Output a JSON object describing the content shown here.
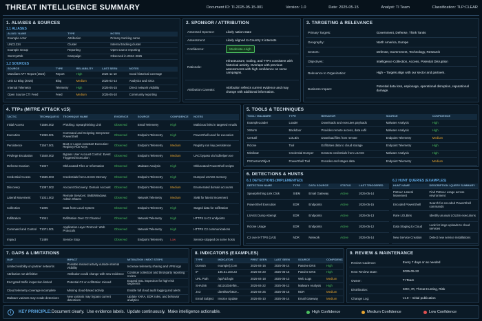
{
  "header": {
    "title": "THREAT INTELLIGENCE SUMMARY",
    "meta": [
      "Document ID:  TI-2025-05-15-001",
      "Version:  1.0",
      "Date:  2025-05-15",
      "Analyst:  TI Team",
      "Classification:  TLP:CLEAR"
    ]
  },
  "aliases_sources": {
    "title": "1. ALIASES & SOURCES",
    "aliases": {
      "title": "1.1 ALIASES",
      "columns": [
        "ALIAS / NAME",
        "TYPE",
        "NOTES"
      ],
      "rows": [
        [
          "Example Actor",
          "Attribution",
          "Primary tracking name"
        ],
        [
          "UNC1234",
          "Cluster",
          "Internal tracking cluster"
        ],
        [
          "Example Group",
          "Reporting",
          "Open source reporting"
        ],
        [
          "StormyWeb",
          "Campaign",
          "Observed in 2024–2025"
        ]
      ]
    },
    "sources": {
      "title": "1.2 SOURCES",
      "columns": [
        "SOURCE",
        "TYPE",
        "RELIABILITY",
        "LAST SEEN",
        "NOTES"
      ],
      "rows": [
        [
          "Mandiant APT Report (2024)",
          "Report",
          "High",
          "2024-11-10",
          "Good historical coverage"
        ],
        [
          "Unit 42 Blog (2025)",
          "Blog",
          "Medium",
          "2025-02-14",
          "Analytics and IOCs"
        ],
        [
          "Internal Telemetry",
          "Telemetry",
          "High",
          "2025-05-15",
          "Direct network visibility"
        ],
        [
          "Open Source CTI Feed",
          "Feed",
          "Medium",
          "2025-05-10",
          "Community reporting"
        ]
      ]
    }
  },
  "sponsor": {
    "title": "2. SPONSOR / ATTRIBUTION",
    "items": [
      {
        "label": "Assessed Sponsor:",
        "value": "Likely nation-state"
      },
      {
        "label": "Assessment:",
        "value": "Likely aligned to Country X interests"
      },
      {
        "label": "Confidence:",
        "value": "Moderate–High"
      },
      {
        "label": "Rationale:",
        "value": "Infrastructure, tooling, and TTPs consistent with historical activity. Overlaps with previous assessments with high confidence on some campaigns."
      },
      {
        "label": "Attribution Caveats:",
        "value": "Attribution reflects current evidence and may change with additional information."
      }
    ]
  },
  "targeting": {
    "title": "3. TARGETING & RELEVANCE",
    "items": [
      {
        "label": "Primary Targets:",
        "value": "Government, Defense, Think Tanks"
      },
      {
        "label": "Geography:",
        "value": "North America, Europe"
      },
      {
        "label": "Sectors:",
        "value": "Defense, Government, Technology, Research"
      },
      {
        "label": "Objectives:",
        "value": "Intelligence Collection, Access, Potential Disruption"
      },
      {
        "label": "Relevance to Organization:",
        "value": "High – Targets align with our sector and partners."
      },
      {
        "label": "Business Impact:",
        "value": "Potential data loss, espionage, operational disruption, reputational damage."
      }
    ]
  },
  "ttps": {
    "title": "4. TTPs (MITRE ATT&CK v15)",
    "columns": [
      "TACTIC",
      "TECHNIQUE ID",
      "TECHNIQUE NAME",
      "EVIDENCE",
      "SOURCE",
      "CONFIDENCE",
      "NOTES"
    ],
    "rows": [
      [
        "Initial Access",
        "T1566.002",
        "Phishing: Spearphishing Link",
        "Observed",
        "Email Telemetry",
        "High",
        "Malicious links in targeted emails"
      ],
      [
        "Execution",
        "T1059.001",
        "Command and Scripting Interpreter: PowerShell",
        "Observed",
        "Endpoint Telemetry",
        "High",
        "PowerShell used for execution"
      ],
      [
        "Persistence",
        "T1547.001",
        "Boot or Logon Autostart Execution: Registry Run Keys",
        "Observed",
        "Endpoint Telemetry",
        "Medium",
        "Registry run key persistence"
      ],
      [
        "Privilege Escalation",
        "T1548.002",
        "Bypass User Account Control: Event Triggered Execution",
        "Observed",
        "Endpoint Telemetry",
        "Medium",
        "UAC bypass via fodhelper.exe"
      ],
      [
        "Defense Evasion",
        "T1027",
        "Obfuscated Files or Information",
        "Observed",
        "Malware Analysis",
        "High",
        "Obfuscated PowerShell scripts"
      ],
      [
        "Credential Access",
        "T1555.003",
        "Credentials from LSASS Memory",
        "Observed",
        "Endpoint Telemetry",
        "High",
        "Dumped LSASS memory"
      ],
      [
        "Discovery",
        "T1087.002",
        "Account Discovery: Domain Account",
        "Observed",
        "Endpoint Telemetry",
        "Medium",
        "Enumerated domain accounts"
      ],
      [
        "Lateral Movement",
        "T1021.002",
        "Remote Services: SMB/Windows Admin Shares",
        "Observed",
        "Network Telemetry",
        "Medium",
        "SMB for lateral movement"
      ],
      [
        "Collection",
        "T1005",
        "Data from Local System",
        "Observed",
        "Endpoint Telemetry",
        "High",
        "Staged data for exfiltration"
      ],
      [
        "Exfiltration",
        "T1041",
        "Exfiltration Over C2 Channel",
        "Observed",
        "Network Telemetry",
        "High",
        "HTTPS to C2 endpoints"
      ],
      [
        "Command and Control",
        "T1071.001",
        "Application Layer Protocol: Web Protocols",
        "Observed",
        "Network Telemetry",
        "High",
        "HTTPS C2 communications"
      ],
      [
        "Impact",
        "T1489",
        "Service Stop",
        "Observed",
        "Endpoint Telemetry",
        "Low",
        "Service stopped on some hosts"
      ]
    ]
  },
  "tools": {
    "title": "5. TOOLS & TECHNIQUES",
    "columns": [
      "TOOL / MALWARE",
      "TYPE",
      "BEHAVIOR",
      "SOURCE",
      "CONFIDENCE"
    ],
    "rows": [
      [
        "ExampleLoader",
        "Loader",
        "Downloads and executes payloads",
        "Malware Analysis",
        "High"
      ],
      [
        "XWorm",
        "Backdoor",
        "Provides remote access, data exfil",
        "Malware Analysis",
        "High"
      ],
      [
        "CertUtil",
        "LOLBin",
        "Download files from remote",
        "Endpoint Telemetry",
        "Medium"
      ],
      [
        "Rclone",
        "Tool",
        "Exfiltrates data to cloud storage",
        "Endpoint Telemetry",
        "High"
      ],
      [
        "Mimikatz",
        "Credential Dumper",
        "Extracts credentials from LSASS",
        "Malware Analysis",
        "High"
      ],
      [
        "PSCustomObject",
        "PowerShell Tool",
        "Encodes and stages data",
        "Endpoint Telemetry",
        "Medium"
      ]
    ]
  },
  "detections": {
    "title": "6. DETECTIONS & HUNTS",
    "implemented": {
      "title": "6.1 DETECTIONS (IMPLEMENTED)",
      "columns": [
        "DETECTION NAME",
        "TYPE",
        "DATA SOURCE",
        "STATUS",
        "LAST TRIGGERED"
      ],
      "rows": [
        [
          "Spearphishing Link Click",
          "SIEM",
          "Email Gateway",
          "Active",
          "2025-05-14"
        ],
        [
          "PowerShell Execution",
          "EDR",
          "Endpoints",
          "Active",
          "2025-05-15"
        ],
        [
          "LSASS Dump Attempt",
          "EDR",
          "Endpoints",
          "Active",
          "2025-05-13"
        ],
        [
          "Rclone Usage",
          "EDR",
          "Endpoints",
          "Active",
          "2025-05-12"
        ],
        [
          "C2 over HTTPS (JA3)",
          "NDR",
          "Network",
          "Active",
          "2025-05-14"
        ]
      ]
    },
    "hunts": {
      "title": "6.2 HUNT QUERIES (EXAMPLES)",
      "columns": [
        "HUNT NAME",
        "DESCRIPTION / QUERY SUMMARY"
      ],
      "rows": [
        [
          "PsExec Lateral Movement",
          "Find PsExec usage across environment"
        ],
        [
          "Encoded PowerShell",
          "Search for encoded PowerShell commands"
        ],
        [
          "Rare LOLBins",
          "Identify unusual LOLBin executions"
        ],
        [
          "Data Staging to Cloud",
          "Look for large uploads to cloud services"
        ],
        [
          "New Service Creation",
          "Detect new service installations"
        ]
      ]
    }
  },
  "gaps": {
    "title": "7. GAPS & LIMITATIONS",
    "columns": [
      "GAP",
      "IMPACT",
      "MITIGATION / NEXT STEPS"
    ],
    "rows": [
      [
        "Limited visibility on partner networks",
        "Possible missed activity outside internal visibility",
        "Increase telemetry sharing and VPN logs"
      ],
      [
        "Attribution not definitive",
        "Attribution could change with new evidence",
        "Continue collection and third-party reporting review"
      ],
      [
        "Encrypted traffic inspection limited",
        "Potential C2 or exfiltration missed",
        "Expand SSL inspection for high-risk segments"
      ],
      [
        "Cloud telemetry coverage incomplete",
        "Missing cloud-based activity",
        "Enable full cloud audit logging and alerts"
      ],
      [
        "Malware variants may evade detections",
        "New variants may bypass current detections",
        "Update YARA, EDR rules, and behavior analytics"
      ]
    ]
  },
  "indicators": {
    "title": "8. INDICATORS (EXAMPLES)",
    "columns": [
      "TYPE",
      "INDICATOR",
      "FIRST SEEN",
      "LAST SEEN",
      "SOURCE",
      "CONFIDENCE"
    ],
    "rows": [
      [
        "Domain",
        "example[.]com",
        "2025-04-16",
        "2025-05-14",
        "Passive DNS",
        "High"
      ],
      [
        "IP",
        "185.51.100.23",
        "2025-04-20",
        "2025-05-15",
        "Passive DNS",
        "High"
      ],
      [
        "URL Path",
        "/api/v1/login",
        "2025-04-18",
        "2025-05-13",
        "Web Logs",
        "Medium"
      ],
      [
        "SHA256",
        "ab12cd34ef56...",
        "2025-04-22",
        "2025-05-12",
        "Malware Analysis",
        "High"
      ],
      [
        "JA3",
        "d4e5f6a7b8c9...",
        "2025-04-25",
        "2025-05-15",
        "NDR",
        "Medium"
      ],
      [
        "Email Subject",
        "Invoice Update",
        "2025-05-10",
        "2025-05-14",
        "Email Gateway",
        "Medium"
      ]
    ]
  },
  "review": {
    "title": "9. REVIEW & MAINTENANCE",
    "items": [
      {
        "label": "Review Cadence:",
        "value": "Every 7 days or as needed"
      },
      {
        "label": "Next Review Date:",
        "value": "2025-05-22"
      },
      {
        "label": "Owner:",
        "value": "TI Team"
      },
      {
        "label": "Distribution:",
        "value": "SOC, IR, Threat Hunting, Risk"
      },
      {
        "label": "Change Log:",
        "value": "v1.0 – Initial publication"
      }
    ]
  },
  "footer": {
    "label": "KEY PRINCIPLE:",
    "text": "Document clearly.  Use evidence labels.  Update continuously.  Make intelligence actionable.",
    "legend": [
      {
        "label": "High Confidence",
        "color": "#4cc060"
      },
      {
        "label": "Medium Confidence",
        "color": "#e8a530"
      },
      {
        "label": "Low Confidence",
        "color": "#e25050"
      }
    ]
  }
}
